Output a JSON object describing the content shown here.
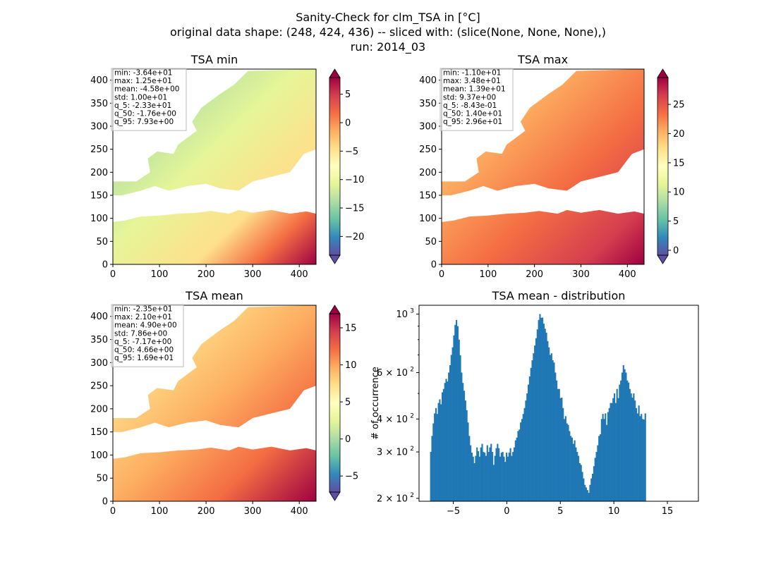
{
  "figure": {
    "title_lines": [
      "Sanity-Check for clm_TSA in [°C]",
      "original data shape: (248, 424, 436) -- sliced with: (slice(None, None, None),)",
      "run: 2014_03"
    ]
  },
  "colors": {
    "colormap": [
      "#5e4fa2",
      "#3288bd",
      "#66c2a5",
      "#abdda4",
      "#e6f598",
      "#ffffbf",
      "#fee08b",
      "#fdae61",
      "#f46d43",
      "#d53e4f",
      "#9e0142"
    ],
    "histogram_bar": "#1f77b4"
  },
  "chart_data": [
    {
      "type": "heatmap",
      "name": "tsa_min",
      "title": "TSA min",
      "xlim": [
        0,
        436
      ],
      "ylim": [
        0,
        424
      ],
      "xticks": [
        0,
        100,
        200,
        300,
        400
      ],
      "yticks": [
        0,
        50,
        100,
        150,
        200,
        250,
        300,
        350,
        400
      ],
      "colorbar": {
        "vmin": -23.3,
        "vmax": 7.93,
        "ticks": [
          5,
          0,
          -5,
          -10,
          -15,
          -20
        ],
        "extend": "both"
      },
      "stats": [
        "min: -3.64e+01",
        "max: 1.25e+01",
        "mean: -4.58e+00",
        "std: 1.00e+01",
        "q_5: -2.33e+01",
        "q_50: -1.76e+00",
        "q_95: 7.93e+00"
      ]
    },
    {
      "type": "heatmap",
      "name": "tsa_max",
      "title": "TSA max",
      "xlim": [
        0,
        436
      ],
      "ylim": [
        0,
        424
      ],
      "xticks": [
        0,
        100,
        200,
        300,
        400
      ],
      "yticks": [
        0,
        50,
        100,
        150,
        200,
        250,
        300,
        350,
        400
      ],
      "colorbar": {
        "vmin": -0.843,
        "vmax": 29.6,
        "ticks": [
          25,
          20,
          15,
          10,
          5,
          0
        ],
        "extend": "both"
      },
      "stats": [
        "min: -1.10e+01",
        "max: 3.48e+01",
        "mean: 1.39e+01",
        "std: 9.37e+00",
        "q_5: -8.43e-01",
        "q_50: 1.40e+01",
        "q_95: 2.96e+01"
      ]
    },
    {
      "type": "heatmap",
      "name": "tsa_mean",
      "title": "TSA mean",
      "xlim": [
        0,
        436
      ],
      "ylim": [
        0,
        424
      ],
      "xticks": [
        0,
        100,
        200,
        300,
        400
      ],
      "yticks": [
        0,
        50,
        100,
        150,
        200,
        250,
        300,
        350,
        400
      ],
      "colorbar": {
        "vmin": -7.17,
        "vmax": 16.9,
        "ticks": [
          15,
          10,
          5,
          0,
          -5
        ],
        "extend": "both"
      },
      "stats": [
        "min: -2.35e+01",
        "max: 2.10e+01",
        "mean: 4.90e+00",
        "std: 7.86e+00",
        "q_5: -7.17e+00",
        "q_50: 4.66e+00",
        "q_95: 1.69e+01"
      ]
    },
    {
      "type": "bar",
      "name": "tsa_mean_distribution",
      "title": "TSA mean - distribution",
      "ylabel": "# of occurrence",
      "yscale": "log",
      "xlim": [
        -8.2,
        17.9
      ],
      "ylim": [
        195,
        1080
      ],
      "xticks": [
        "-5",
        "0",
        "5",
        "10",
        "15"
      ],
      "xtick_values": [
        -5,
        0,
        5,
        10,
        15
      ],
      "yticks": [
        {
          "value": 1000,
          "base": "10",
          "exp": "3"
        },
        {
          "value": 600,
          "base": "6 × 10",
          "exp": "2"
        },
        {
          "value": 400,
          "base": "4 × 10",
          "exp": "2"
        },
        {
          "value": 300,
          "base": "3 × 10",
          "exp": "2"
        },
        {
          "value": 200,
          "base": "2 × 10",
          "exp": "2"
        }
      ],
      "bins": {
        "start": -7.17,
        "width": 0.12
      },
      "values": [
        300,
        345,
        385,
        420,
        440,
        418,
        460,
        475,
        455,
        505,
        520,
        548,
        568,
        555,
        600,
        640,
        700,
        748,
        830,
        910,
        950,
        900,
        800,
        698,
        600,
        548,
        512,
        470,
        432,
        388,
        345,
        318,
        298,
        288,
        272,
        290,
        312,
        302,
        288,
        312,
        322,
        300,
        298,
        290,
        318,
        300,
        312,
        322,
        300,
        268,
        290,
        310,
        322,
        310,
        288,
        298,
        300,
        288,
        275,
        298,
        288,
        298,
        310,
        290,
        300,
        312,
        332,
        340,
        360,
        365,
        388,
        400,
        418,
        440,
        470,
        500,
        540,
        580,
        625,
        668,
        710,
        760,
        810,
        875,
        950,
        1000,
        968,
        970,
        920,
        880,
        850,
        790,
        748,
        700,
        710,
        668,
        655,
        600,
        560,
        520,
        520,
        480,
        482,
        440,
        400,
        410,
        385,
        380,
        360,
        345,
        340,
        322,
        332,
        312,
        300,
        290,
        272,
        268,
        252,
        238,
        225,
        220,
        215,
        210,
        225,
        238,
        248,
        265,
        285,
        300,
        318,
        345,
        350,
        400,
        418,
        400,
        420,
        380,
        425,
        440,
        460,
        460,
        480,
        500,
        460,
        520,
        480,
        540,
        560,
        600,
        640,
        618,
        600,
        560,
        550,
        520,
        500,
        482,
        500,
        470,
        440,
        420,
        450,
        410,
        418,
        400,
        398,
        420
      ]
    }
  ]
}
